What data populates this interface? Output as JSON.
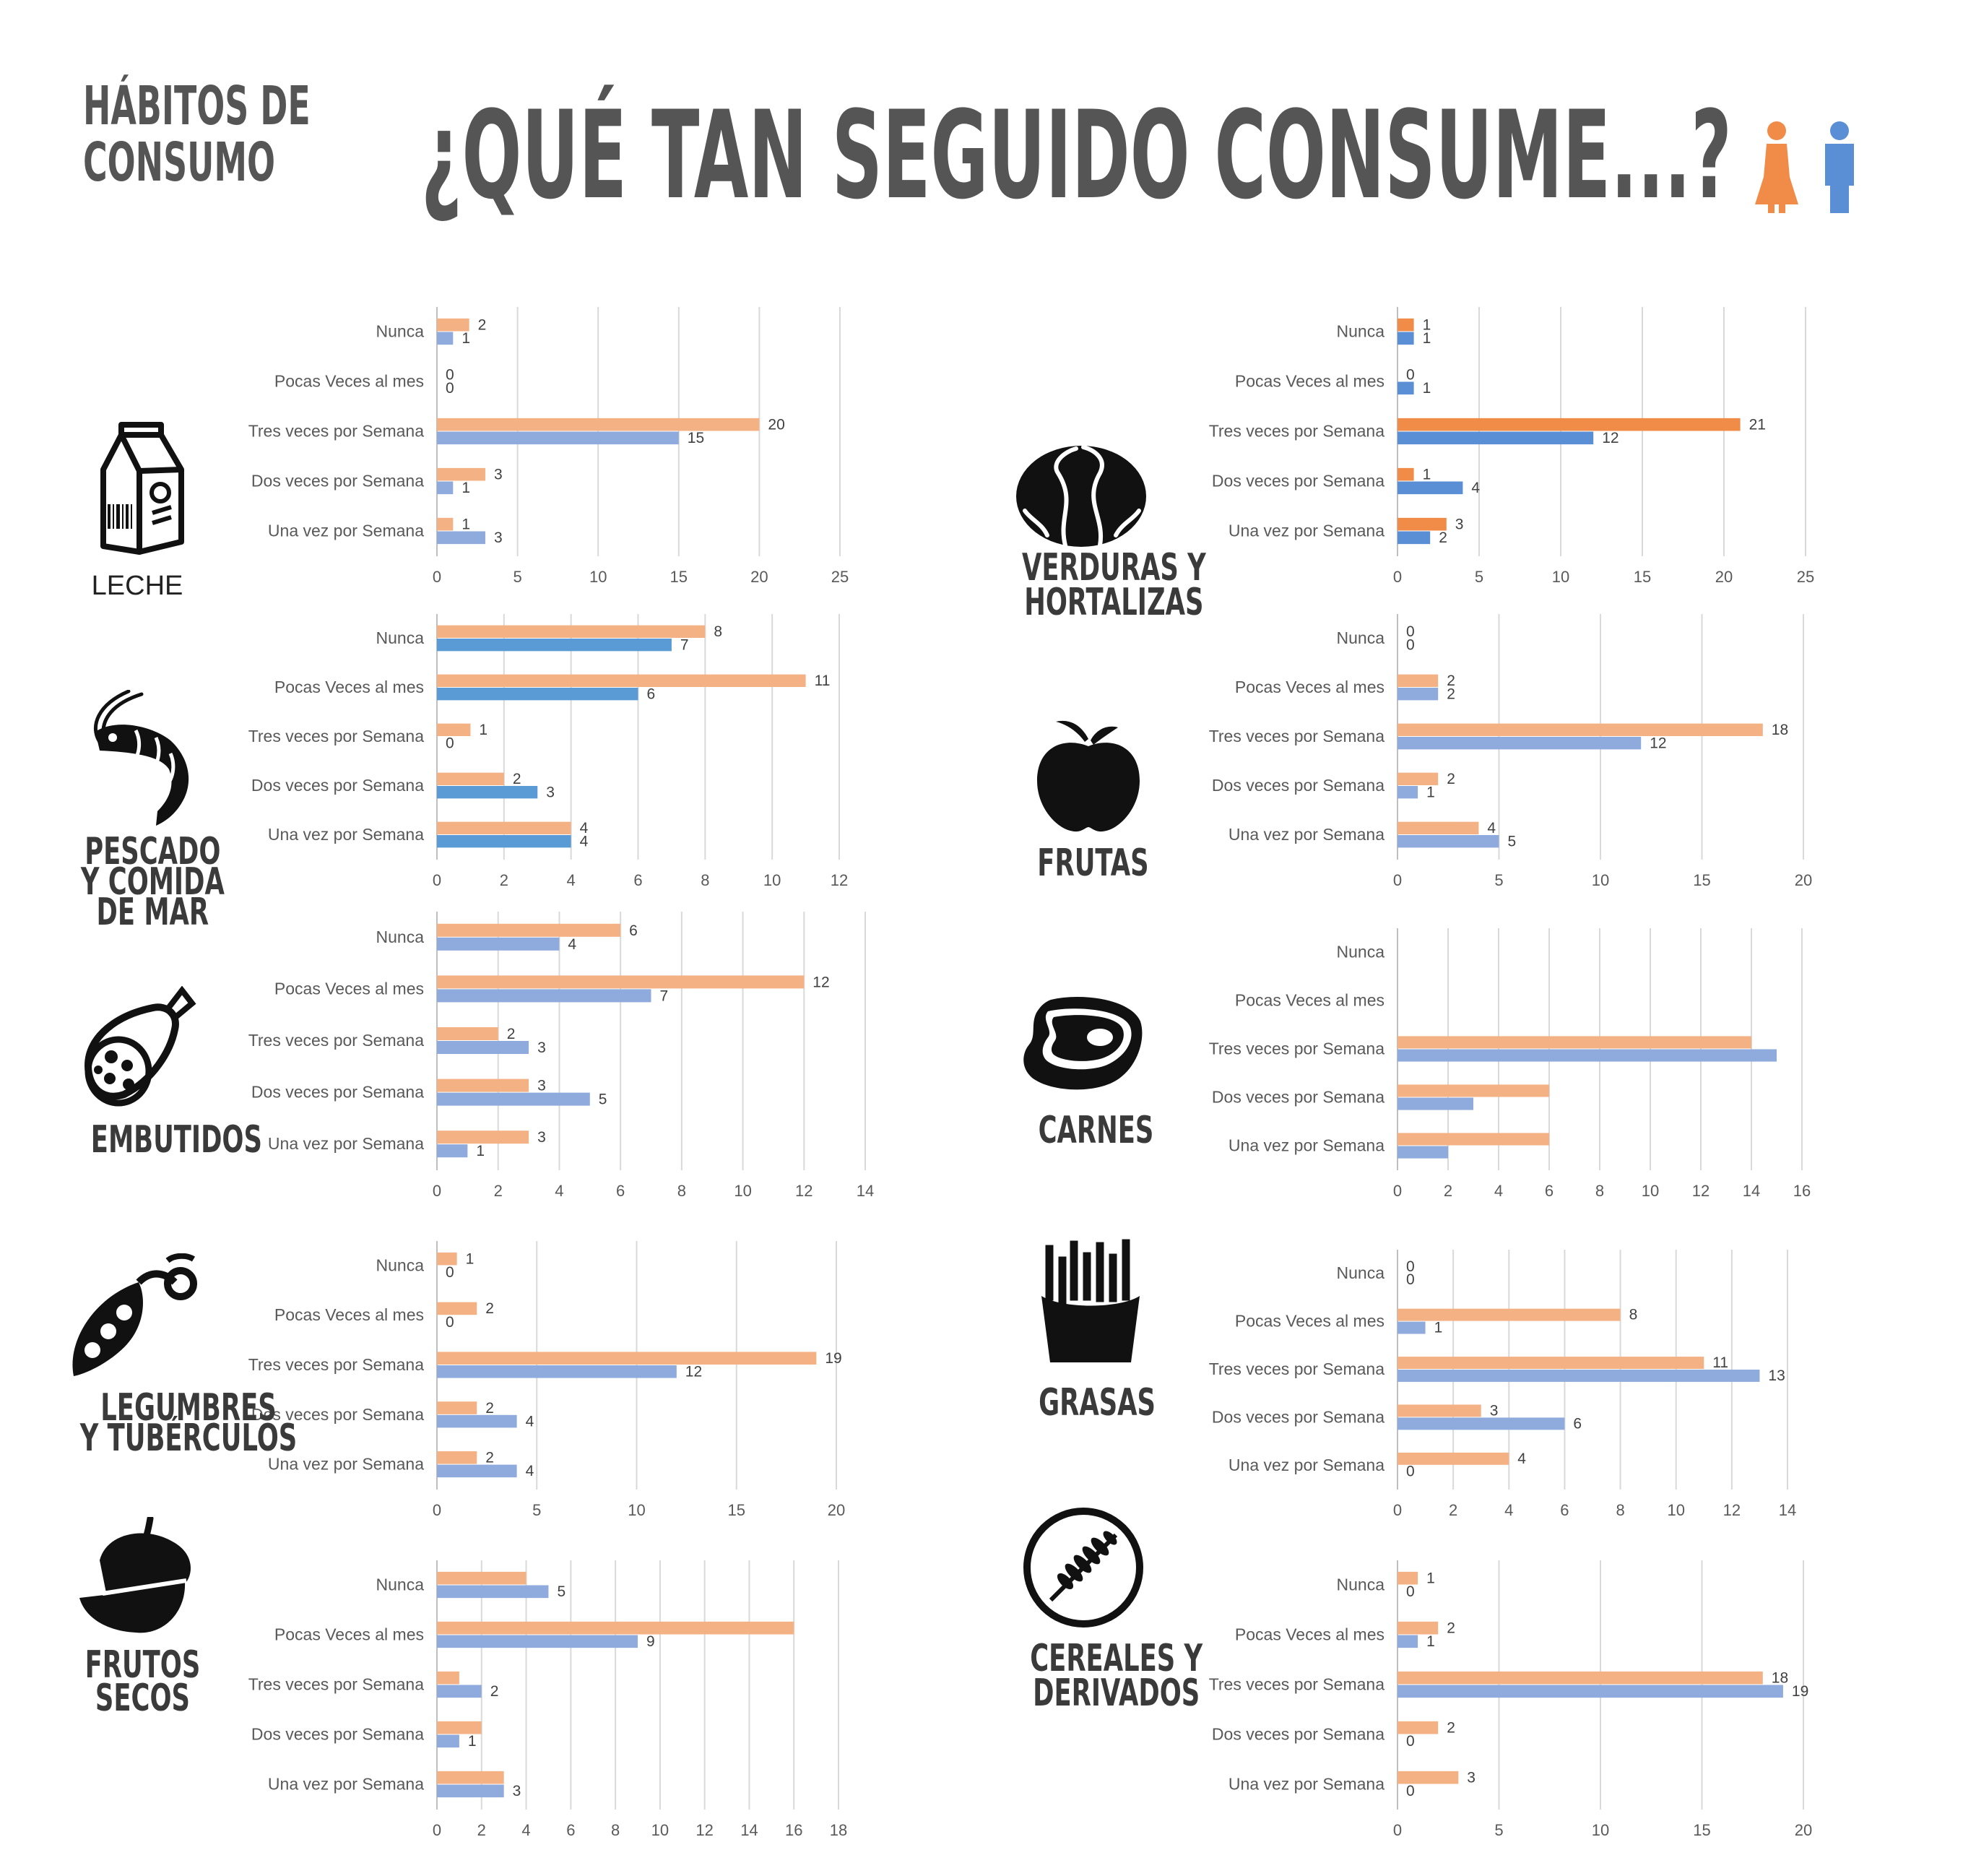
{
  "header": {
    "kicker_line1": "HÁBITOS DE",
    "kicker_line2": "CONSUMO",
    "title": "¿QUÉ TAN SEGUIDO CONSUME...?",
    "icons": [
      "woman-icon",
      "man-icon"
    ]
  },
  "colors": {
    "women": "#F4B183",
    "men": "#8FAADC",
    "women_dark": "#F08C48",
    "men_dark": "#5B9BD5",
    "text": "#555555"
  },
  "categories": [
    {
      "name": "LECHE",
      "lines": [
        "LECHE"
      ],
      "icon": "milk-carton-icon"
    },
    {
      "name": "VERDURAS Y HORTALIZAS",
      "lines": [
        "VERDURAS Y",
        "HORTALIZAS"
      ],
      "icon": "lettuce-icon"
    },
    {
      "name": "PESCADO Y COMIDA DE MAR",
      "lines": [
        "PESCADO",
        "Y COMIDA",
        "DE MAR"
      ],
      "icon": "shrimp-icon"
    },
    {
      "name": "FRUTAS",
      "lines": [
        "FRUTAS"
      ],
      "icon": "apple-icon"
    },
    {
      "name": "EMBUTIDOS",
      "lines": [
        "EMBUTIDOS"
      ],
      "icon": "sausage-icon"
    },
    {
      "name": "CARNES",
      "lines": [
        "CARNES"
      ],
      "icon": "steak-icon"
    },
    {
      "name": "LEGUMBRES Y TUBÉRCULOS",
      "lines": [
        "LEGUMBRES",
        "Y TUBÉRCULOS"
      ],
      "icon": "peas-icon"
    },
    {
      "name": "GRASAS",
      "lines": [
        "GRASAS"
      ],
      "icon": "fries-icon"
    },
    {
      "name": "FRUTOS SECOS",
      "lines": [
        "FRUTOS",
        "SECOS"
      ],
      "icon": "acorn-icon"
    },
    {
      "name": "CEREALES Y DERIVADOS",
      "lines": [
        "CEREALES Y",
        "DERIVADOS"
      ],
      "icon": "wheat-icon"
    }
  ],
  "chart_data": [
    {
      "type": "bar",
      "orientation": "horizontal",
      "title": "LECHE",
      "categories": [
        "Nunca",
        "Pocas Veces al mes",
        "Tres veces por Semana",
        "Dos veces por Semana",
        "Una vez por Semana"
      ],
      "series": [
        {
          "values": [
            2,
            0,
            20,
            3,
            1
          ],
          "color": "#F4B183"
        },
        {
          "values": [
            1,
            0,
            15,
            1,
            3
          ],
          "color": "#8FAADC"
        }
      ],
      "xlim": [
        0,
        25
      ],
      "ticks": [
        0,
        5,
        10,
        15,
        20,
        25
      ],
      "grid": true,
      "show_labels": true
    },
    {
      "type": "bar",
      "orientation": "horizontal",
      "title": "VERDURAS Y HORTALIZAS",
      "categories": [
        "Nunca",
        "Pocas Veces al mes",
        "Tres veces por Semana",
        "Dos veces por Semana",
        "Una vez por Semana"
      ],
      "series": [
        {
          "values": [
            1,
            0,
            21,
            1,
            3
          ],
          "color": "#F08C48"
        },
        {
          "values": [
            1,
            1,
            12,
            4,
            2
          ],
          "color": "#5B8FD5"
        }
      ],
      "xlim": [
        0,
        25
      ],
      "ticks": [
        0,
        5,
        10,
        15,
        20,
        25
      ],
      "grid": true,
      "show_labels": true
    },
    {
      "type": "bar",
      "orientation": "horizontal",
      "title": "PESCADO Y COMIDA DE MAR",
      "categories": [
        "Nunca",
        "Pocas Veces al mes",
        "Tres veces por Semana",
        "Dos veces por Semana",
        "Una vez por Semana"
      ],
      "series": [
        {
          "values": [
            8,
            11,
            1,
            2,
            4
          ],
          "color": "#F4B183"
        },
        {
          "values": [
            7,
            6,
            0,
            3,
            4
          ],
          "color": "#5B9BD5"
        }
      ],
      "xlim": [
        0,
        12
      ],
      "ticks": [
        0,
        2,
        4,
        6,
        8,
        10,
        12
      ],
      "grid": true,
      "show_labels": true
    },
    {
      "type": "bar",
      "orientation": "horizontal",
      "title": "FRUTAS",
      "categories": [
        "Nunca",
        "Pocas Veces al mes",
        "Tres veces por Semana",
        "Dos veces por Semana",
        "Una vez por Semana"
      ],
      "series": [
        {
          "values": [
            0,
            2,
            18,
            2,
            4
          ],
          "color": "#F4B183"
        },
        {
          "values": [
            0,
            2,
            12,
            1,
            5
          ],
          "color": "#8FAADC"
        }
      ],
      "xlim": [
        0,
        20
      ],
      "ticks": [
        0,
        5,
        10,
        15,
        20
      ],
      "grid": true,
      "show_labels": true
    },
    {
      "type": "bar",
      "orientation": "horizontal",
      "title": "EMBUTIDOS",
      "categories": [
        "Nunca",
        "Pocas Veces al mes",
        "Tres veces por Semana",
        "Dos veces por Semana",
        "Una vez por Semana"
      ],
      "series": [
        {
          "values": [
            6,
            12,
            2,
            3,
            3
          ],
          "color": "#F4B183"
        },
        {
          "values": [
            4,
            7,
            3,
            5,
            1
          ],
          "color": "#8FAADC"
        }
      ],
      "xlim": [
        0,
        14
      ],
      "ticks": [
        0,
        2,
        4,
        6,
        8,
        10,
        12,
        14
      ],
      "grid": true,
      "show_labels": true
    },
    {
      "type": "bar",
      "orientation": "horizontal",
      "title": "CARNES",
      "categories": [
        "Nunca",
        "Pocas Veces al mes",
        "Tres veces por Semana",
        "Dos veces por Semana",
        "Una vez por Semana"
      ],
      "series": [
        {
          "values": [
            0,
            0,
            14,
            6,
            6
          ],
          "color": "#F4B183"
        },
        {
          "values": [
            0,
            0,
            15,
            3,
            2
          ],
          "color": "#8FAADC"
        }
      ],
      "xlim": [
        0,
        16
      ],
      "ticks": [
        0,
        2,
        4,
        6,
        8,
        10,
        12,
        14,
        16
      ],
      "grid": true,
      "show_labels": false
    },
    {
      "type": "bar",
      "orientation": "horizontal",
      "title": "LEGUMBRES Y TUBÉRCULOS",
      "categories": [
        "Nunca",
        "Pocas Veces al mes",
        "Tres veces por Semana",
        "Dos veces por Semana",
        "Una vez por Semana"
      ],
      "series": [
        {
          "values": [
            1,
            2,
            19,
            2,
            2
          ],
          "color": "#F4B183"
        },
        {
          "values": [
            0,
            0,
            12,
            4,
            4
          ],
          "color": "#8FAADC"
        }
      ],
      "xlim": [
        0,
        20
      ],
      "ticks": [
        0,
        5,
        10,
        15,
        20
      ],
      "grid": true,
      "show_labels": true
    },
    {
      "type": "bar",
      "orientation": "horizontal",
      "title": "GRASAS",
      "categories": [
        "Nunca",
        "Pocas Veces al mes",
        "Tres veces por Semana",
        "Dos veces por Semana",
        "Una vez por Semana"
      ],
      "series": [
        {
          "values": [
            0,
            8,
            11,
            3,
            4
          ],
          "color": "#F4B183"
        },
        {
          "values": [
            0,
            1,
            13,
            6,
            0
          ],
          "color": "#8FAADC"
        }
      ],
      "xlim": [
        0,
        14
      ],
      "ticks": [
        0,
        2,
        4,
        6,
        8,
        10,
        12,
        14
      ],
      "grid": true,
      "show_labels": true
    },
    {
      "type": "bar",
      "orientation": "horizontal",
      "title": "FRUTOS SECOS",
      "categories": [
        "Nunca",
        "Pocas Veces al mes",
        "Tres veces por Semana",
        "Dos veces por Semana",
        "Una vez por Semana"
      ],
      "series": [
        {
          "values": [
            4,
            16,
            1,
            2,
            3
          ],
          "color": "#F4B183"
        },
        {
          "values": [
            5,
            9,
            2,
            1,
            3
          ],
          "color": "#8FAADC"
        }
      ],
      "xlim": [
        0,
        18
      ],
      "ticks": [
        0,
        2,
        4,
        6,
        8,
        10,
        12,
        14,
        16,
        18
      ],
      "grid": true,
      "data_labels": [
        [
          null,
          null,
          null,
          null,
          null
        ],
        [
          5,
          9,
          2,
          1,
          3
        ]
      ],
      "show_labels": true
    },
    {
      "type": "bar",
      "orientation": "horizontal",
      "title": "CEREALES Y DERIVADOS",
      "categories": [
        "Nunca",
        "Pocas Veces al mes",
        "Tres veces por Semana",
        "Dos veces por Semana",
        "Una vez por Semana"
      ],
      "series": [
        {
          "values": [
            1,
            2,
            18,
            2,
            3
          ],
          "color": "#F4B183"
        },
        {
          "values": [
            0,
            1,
            19,
            0,
            0
          ],
          "color": "#8FAADC"
        }
      ],
      "xlim": [
        0,
        20
      ],
      "ticks": [
        0,
        5,
        10,
        15,
        20
      ],
      "grid": true,
      "show_labels": true
    }
  ]
}
